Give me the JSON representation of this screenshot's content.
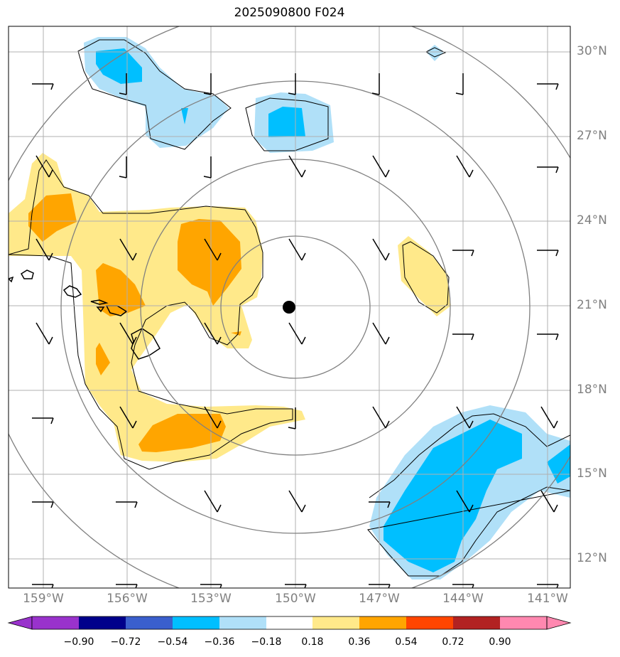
{
  "title": "2025090800 F024",
  "lat_labels": [
    "30°N",
    "27°N",
    "24°N",
    "21°N",
    "18°N",
    "15°N",
    "12°N"
  ],
  "lon_labels": [
    "159°W",
    "156°W",
    "153°W",
    "150°W",
    "147°W",
    "144°W",
    "141°W"
  ],
  "colorbar": {
    "ticks": [
      "−0.90",
      "−0.72",
      "−0.54",
      "−0.36",
      "−0.18",
      "0.18",
      "0.36",
      "0.54",
      "0.72",
      "0.90"
    ],
    "colors": [
      "#9932cc",
      "#00008b",
      "#3a5fcd",
      "#00bfff",
      "#b0e0f8",
      "#ffffff",
      "#ffe98a",
      "#ffa500",
      "#ff4500",
      "#b22222",
      "#ff88b0"
    ]
  },
  "colors": {
    "light_blue": "#b0e0f8",
    "blue": "#00bfff",
    "light_yellow": "#ffe98a",
    "orange": "#ffa500",
    "range_rings": "#808080",
    "grid": "#b0b0b0"
  },
  "center_marker": {
    "lat": 21.0,
    "lon": -150.0
  }
}
